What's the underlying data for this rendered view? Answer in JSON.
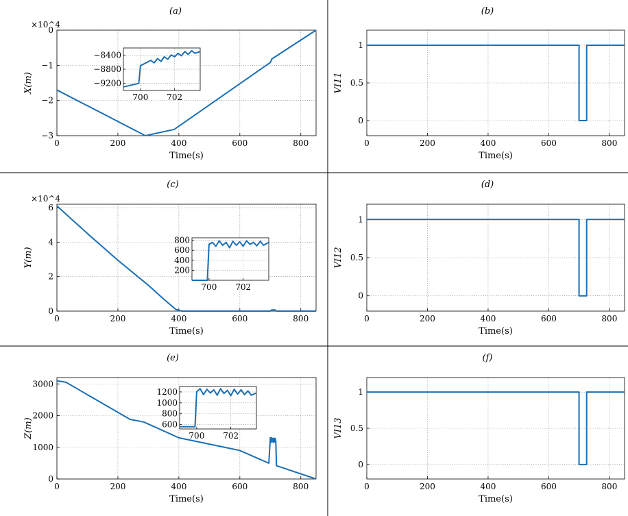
{
  "chart_data": [
    {
      "id": "a",
      "type": "line",
      "panel_label": "(a)",
      "ylabel": "X(m)",
      "xlabel": "Time(s)",
      "xlim": [
        0,
        850
      ],
      "ylim": [
        -30000,
        0
      ],
      "y_exponent": "×10^4",
      "xticks": [
        0,
        200,
        400,
        600,
        800
      ],
      "yticks": [
        -30000,
        -20000,
        -10000,
        0
      ],
      "ytick_labels": [
        "−3",
        "−2",
        "−1",
        "0"
      ],
      "series": [
        {
          "x": [
            0,
            290,
            385,
            700,
            705,
            712,
            850
          ],
          "y": [
            -17000,
            -30000,
            -28200,
            -9200,
            -8200,
            -7800,
            0
          ]
        }
      ],
      "inset": {
        "xlim": [
          699,
          703.5
        ],
        "ylim": [
          -9400,
          -8200
        ],
        "xticks": [
          700,
          702
        ],
        "yticks": [
          -8400,
          -8800,
          -9200
        ],
        "ytick_labels": [
          "−8400",
          "−8800",
          "−9200"
        ],
        "series": [
          {
            "x": [
              699,
              699.9,
              700.0,
              700.2,
              700.4,
              700.6,
              700.8,
              701.0,
              701.2,
              701.4,
              701.6,
              701.8,
              702.0,
              702.2,
              702.4,
              702.6,
              702.8,
              703.0,
              703.2,
              703.5
            ],
            "y": [
              -9300,
              -9200,
              -8700,
              -8650,
              -8600,
              -8550,
              -8620,
              -8500,
              -8580,
              -8450,
              -8520,
              -8400,
              -8450,
              -8350,
              -8420,
              -8300,
              -8380,
              -8280,
              -8350,
              -8300
            ]
          }
        ]
      }
    },
    {
      "id": "b",
      "type": "line",
      "panel_label": "(b)",
      "ylabel": "VI11",
      "ylabel_base": "VI",
      "ylabel_sub": "11",
      "xlabel": "Time(s)",
      "xlim": [
        0,
        850
      ],
      "ylim": [
        -0.2,
        1.2
      ],
      "xticks": [
        0,
        200,
        400,
        600,
        800
      ],
      "yticks": [
        0,
        0.5,
        1
      ],
      "ytick_labels": [
        "0",
        "0.5",
        "1"
      ],
      "series": [
        {
          "x": [
            0,
            700,
            700,
            725,
            725,
            850
          ],
          "y": [
            1,
            1,
            0,
            0,
            1,
            1
          ]
        }
      ]
    },
    {
      "id": "c",
      "type": "line",
      "panel_label": "(c)",
      "ylabel": "Y(m)",
      "xlabel": "Time(s)",
      "xlim": [
        0,
        850
      ],
      "ylim": [
        0,
        62000
      ],
      "y_exponent": "×10^4",
      "xticks": [
        0,
        200,
        400,
        600,
        800
      ],
      "yticks": [
        0,
        20000,
        40000,
        60000
      ],
      "ytick_labels": [
        "0",
        "2",
        "4",
        "6"
      ],
      "series": [
        {
          "x": [
            0,
            100,
            200,
            300,
            350,
            390,
            410,
            700,
            705,
            715,
            720,
            850
          ],
          "y": [
            61000,
            45000,
            29500,
            15000,
            7000,
            1000,
            0,
            0,
            700,
            700,
            0,
            0
          ]
        }
      ],
      "inset": {
        "xlim": [
          699,
          703.5
        ],
        "ylim": [
          0,
          850
        ],
        "xticks": [
          700,
          702
        ],
        "yticks": [
          200,
          400,
          600,
          800
        ],
        "ytick_labels": [
          "200",
          "400",
          "600",
          "800"
        ],
        "series": [
          {
            "x": [
              699,
              699.9,
              700.0,
              700.2,
              700.4,
              700.6,
              700.8,
              701.0,
              701.2,
              701.4,
              701.6,
              701.8,
              702.0,
              702.2,
              702.4,
              702.6,
              702.8,
              703.0,
              703.2,
              703.5
            ],
            "y": [
              0,
              0,
              720,
              760,
              680,
              790,
              700,
              760,
              650,
              780,
              700,
              770,
              680,
              790,
              720,
              760,
              690,
              780,
              700,
              760
            ]
          }
        ]
      }
    },
    {
      "id": "d",
      "type": "line",
      "panel_label": "(d)",
      "ylabel": "VI12",
      "ylabel_base": "VI",
      "ylabel_sub": "12",
      "xlabel": "Time(s)",
      "xlim": [
        0,
        850
      ],
      "ylim": [
        -0.2,
        1.2
      ],
      "xticks": [
        0,
        200,
        400,
        600,
        800
      ],
      "yticks": [
        0,
        0.5,
        1
      ],
      "ytick_labels": [
        "0",
        "0.5",
        "1"
      ],
      "series": [
        {
          "x": [
            0,
            700,
            700,
            725,
            725,
            850
          ],
          "y": [
            1,
            1,
            0,
            0,
            1,
            1
          ]
        }
      ]
    },
    {
      "id": "e",
      "type": "line",
      "panel_label": "(e)",
      "ylabel": "Z(m)",
      "xlabel": "Time(s)",
      "xlim": [
        0,
        850
      ],
      "ylim": [
        0,
        3200
      ],
      "xticks": [
        0,
        200,
        400,
        600,
        800
      ],
      "yticks": [
        0,
        1000,
        2000,
        3000
      ],
      "ytick_labels": [
        "0",
        "1000",
        "2000",
        "3000"
      ],
      "series": [
        {
          "x": [
            0,
            30,
            240,
            285,
            400,
            600,
            695,
            700,
            702,
            704,
            706,
            708,
            710,
            712,
            714,
            716,
            718,
            720,
            850
          ],
          "y": [
            3100,
            3050,
            1880,
            1800,
            1300,
            900,
            500,
            1300,
            1150,
            1300,
            1180,
            1280,
            1150,
            1290,
            1170,
            1280,
            1200,
            420,
            0
          ]
        }
      ],
      "inset": {
        "xlim": [
          699,
          703.5
        ],
        "ylim": [
          520,
          1300
        ],
        "xticks": [
          700,
          702
        ],
        "yticks": [
          600,
          800,
          1000,
          1200
        ],
        "ytick_labels": [
          "600",
          "800",
          "1000",
          "1200"
        ],
        "series": [
          {
            "x": [
              699,
              699.9,
              700.0,
              700.2,
              700.4,
              700.6,
              700.8,
              701.0,
              701.2,
              701.4,
              701.6,
              701.8,
              702.0,
              702.2,
              702.4,
              702.6,
              702.8,
              703.0,
              703.2,
              703.5
            ],
            "y": [
              560,
              560,
              1200,
              1260,
              1150,
              1250,
              1180,
              1240,
              1140,
              1260,
              1170,
              1230,
              1130,
              1250,
              1160,
              1240,
              1150,
              1220,
              1140,
              1180
            ]
          }
        ]
      }
    },
    {
      "id": "f",
      "type": "line",
      "panel_label": "(f)",
      "ylabel": "VI13",
      "ylabel_base": "VI",
      "ylabel_sub": "13",
      "xlabel": "Time(s)",
      "xlim": [
        0,
        850
      ],
      "ylim": [
        -0.2,
        1.2
      ],
      "xticks": [
        0,
        200,
        400,
        600,
        800
      ],
      "yticks": [
        0,
        0.5,
        1
      ],
      "ytick_labels": [
        "0",
        "0.5",
        "1"
      ],
      "series": [
        {
          "x": [
            0,
            700,
            700,
            725,
            725,
            850
          ],
          "y": [
            1,
            1,
            0,
            0,
            1,
            1
          ]
        }
      ]
    }
  ],
  "colors": {
    "line": "#1a6fb5",
    "axes": "#000000"
  }
}
